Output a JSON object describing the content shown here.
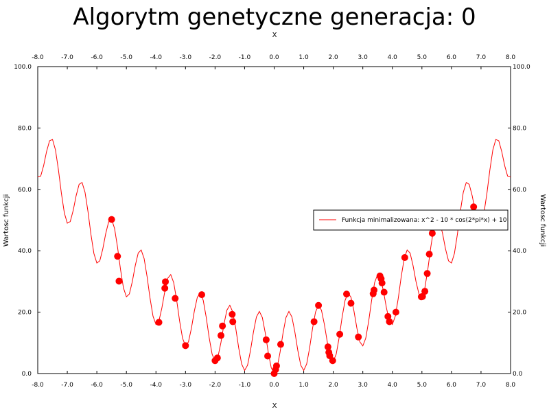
{
  "chart_data": {
    "type": "line",
    "title": "Algorytm genetyczne generacja: 0",
    "xlabel": "X",
    "ylabel": "Wartosc funkcji",
    "xlim": [
      -8.0,
      8.0
    ],
    "ylim": [
      0.0,
      100.0
    ],
    "x_ticks": [
      "-8.0",
      "-7.0",
      "-6.0",
      "-5.0",
      "-4.0",
      "-3.0",
      "-2.0",
      "-1.0",
      "0.0",
      "1.0",
      "2.0",
      "3.0",
      "4.0",
      "5.0",
      "6.0",
      "7.0",
      "8.0"
    ],
    "y_ticks": [
      "0.0",
      "20.0",
      "40.0",
      "60.0",
      "80.0",
      "100.0"
    ],
    "grid": false,
    "legend_position": "right",
    "series": [
      {
        "name": "Funkcja minimalizowana: x^2 - 10 * cos(2*pi*x) + 10",
        "kind": "line",
        "color": "#ff0000",
        "expression": "x^2 - 10*cos(2*pi*x) + 10",
        "x_range": [
          -8.0,
          8.0
        ],
        "step": 0.1
      },
      {
        "kind": "scatter",
        "color": "#ff0000",
        "x": [
          -5.5,
          -5.3,
          -5.25,
          -3.9,
          -3.7,
          -3.68,
          -3.35,
          -3.0,
          -2.45,
          -2.0,
          -1.92,
          -1.8,
          -1.75,
          -1.42,
          -1.4,
          -0.27,
          -0.22,
          0.0,
          0.05,
          0.08,
          0.22,
          1.35,
          1.5,
          1.82,
          1.85,
          1.88,
          1.98,
          2.22,
          2.45,
          2.6,
          2.85,
          3.35,
          3.38,
          3.58,
          3.62,
          3.65,
          3.72,
          3.85,
          3.9,
          4.12,
          4.42,
          4.98,
          5.02,
          5.1,
          5.18,
          5.25,
          5.35,
          6.25,
          6.75
        ],
        "y": [
          50.2,
          38.2,
          30.1,
          16.7,
          27.8,
          29.9,
          24.5,
          9.1,
          25.7,
          4.2,
          5.1,
          12.4,
          15.5,
          19.3,
          16.9,
          11.0,
          5.7,
          0.0,
          1.3,
          2.5,
          9.5,
          16.9,
          22.2,
          8.7,
          6.9,
          5.8,
          4.2,
          12.8,
          25.9,
          22.9,
          11.9,
          26.0,
          27.2,
          31.8,
          30.9,
          29.5,
          26.5,
          18.6,
          16.9,
          20.0,
          37.8,
          25.0,
          25.1,
          26.8,
          32.6,
          38.9,
          45.7,
          50.2,
          54.3
        ]
      }
    ]
  }
}
